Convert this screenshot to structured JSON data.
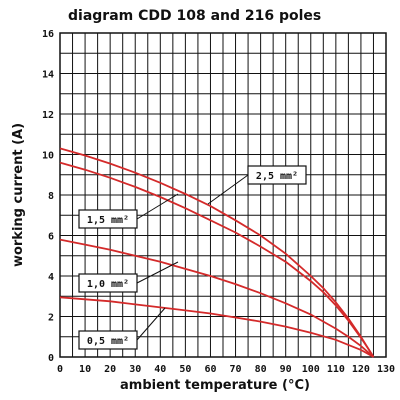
{
  "chart_data": {
    "type": "line",
    "title": "diagram CDD 108 and 216 poles",
    "xlabel": "ambient temperature (°C)",
    "ylabel": "working current (A)",
    "xlim": [
      0,
      130
    ],
    "ylim": [
      0,
      16
    ],
    "x_ticks": [
      0,
      10,
      20,
      30,
      40,
      50,
      60,
      70,
      80,
      90,
      100,
      110,
      120,
      130
    ],
    "y_ticks": [
      0,
      2,
      4,
      6,
      8,
      10,
      12,
      14,
      16
    ],
    "grid": true,
    "series": [
      {
        "name": "2,5 mm²",
        "x": [
          0,
          10,
          20,
          30,
          40,
          50,
          60,
          70,
          80,
          90,
          100,
          105,
          110,
          115,
          120,
          123,
          125
        ],
        "y": [
          10.3,
          9.95,
          9.55,
          9.1,
          8.6,
          8.05,
          7.45,
          6.75,
          6.0,
          5.1,
          4.0,
          3.4,
          2.7,
          1.9,
          1.0,
          0.4,
          0
        ]
      },
      {
        "name": "1,5 mm²",
        "x": [
          0,
          10,
          20,
          30,
          40,
          50,
          60,
          70,
          80,
          90,
          100,
          105,
          110,
          115,
          120,
          123,
          125
        ],
        "y": [
          9.6,
          9.25,
          8.85,
          8.4,
          7.9,
          7.35,
          6.75,
          6.15,
          5.45,
          4.7,
          3.75,
          3.2,
          2.55,
          1.8,
          0.95,
          0.4,
          0
        ]
      },
      {
        "name": "1,0 mm²",
        "x": [
          0,
          10,
          20,
          30,
          40,
          50,
          60,
          70,
          80,
          90,
          100,
          110,
          115,
          120,
          125
        ],
        "y": [
          5.8,
          5.55,
          5.3,
          5.0,
          4.7,
          4.35,
          4.0,
          3.6,
          3.15,
          2.65,
          2.1,
          1.4,
          1.0,
          0.55,
          0
        ]
      },
      {
        "name": "0,5 mm²",
        "x": [
          0,
          10,
          20,
          30,
          40,
          50,
          60,
          70,
          80,
          90,
          100,
          110,
          115,
          120,
          125
        ],
        "y": [
          2.95,
          2.85,
          2.75,
          2.6,
          2.45,
          2.3,
          2.15,
          1.95,
          1.75,
          1.5,
          1.2,
          0.85,
          0.6,
          0.35,
          0
        ]
      }
    ]
  }
}
